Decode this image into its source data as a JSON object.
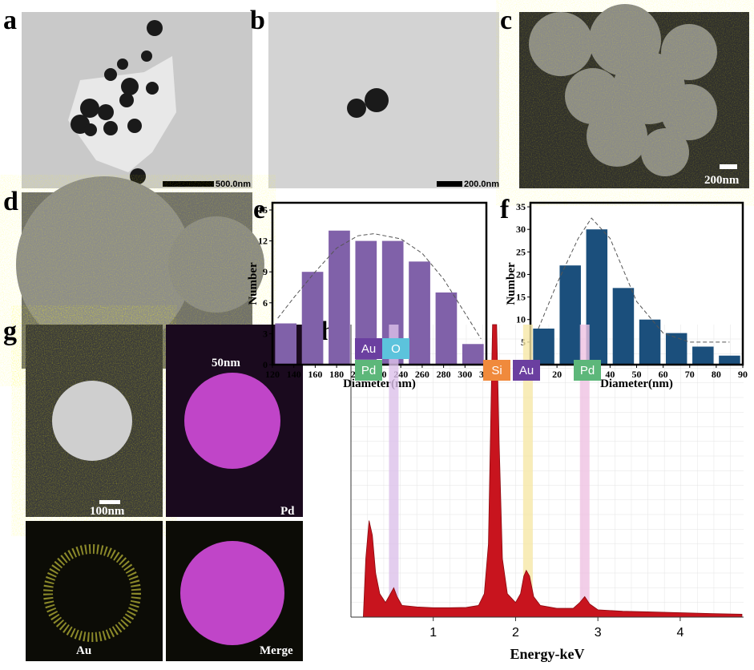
{
  "panel_labels": [
    "a",
    "b",
    "c",
    "d",
    "e",
    "f",
    "g",
    "h"
  ],
  "scale_bars": [
    "500.0nm",
    "200.0nm",
    "200nm",
    "50nm",
    "100nm"
  ],
  "map_labels": [
    "Pd",
    "Au",
    "Merge"
  ],
  "chart_data": [
    {
      "type": "histogram",
      "bins": [
        120,
        145,
        170,
        195,
        220,
        245,
        270,
        295,
        320
      ],
      "values": [
        4,
        9,
        13,
        12,
        12,
        10,
        7,
        2
      ],
      "color": "#8061a9",
      "xlim": [
        120,
        320
      ],
      "ylim": [
        0,
        15.7
      ],
      "xticks": [
        120,
        140,
        160,
        180,
        200,
        220,
        240,
        260,
        280,
        300,
        320
      ],
      "yticks": [
        0,
        3,
        6,
        9,
        12,
        15
      ],
      "xlabel": "Diameter(nm)",
      "ylabel": "Number",
      "curve": {
        "x": [
          125,
          140,
          160,
          180,
          200,
          215,
          240,
          260,
          280,
          300,
          315
        ],
        "values": [
          4.5,
          6.5,
          9,
          11.3,
          12.5,
          12.7,
          12.2,
          10.8,
          8.3,
          5,
          2.5
        ]
      }
    },
    {
      "type": "histogram",
      "bins": [
        10,
        20,
        30,
        40,
        50,
        60,
        70,
        80,
        90
      ],
      "values": [
        8,
        22,
        30,
        17,
        10,
        7,
        4,
        2
      ],
      "color": "#1b4f7c",
      "xlim": [
        10,
        90
      ],
      "ylim": [
        0,
        35.9
      ],
      "xticks": [
        10,
        20,
        30,
        40,
        50,
        60,
        70,
        80,
        90
      ],
      "yticks": [
        0,
        5,
        10,
        15,
        20,
        25,
        30,
        35
      ],
      "xlabel": "Diameter(nm)",
      "ylabel": "Number",
      "curve": {
        "x": [
          13,
          20,
          28,
          33,
          40,
          50,
          60,
          70,
          85
        ],
        "values": [
          8,
          18,
          28,
          32.5,
          28,
          14,
          7,
          5,
          5
        ]
      }
    },
    {
      "type": "area",
      "color": "#c8141e",
      "xlim": [
        0,
        4.77
      ],
      "ylim": [
        0,
        100
      ],
      "xticks": [
        1,
        2,
        3,
        4
      ],
      "xlabel": "Energy-keV",
      "x": [
        0.15,
        0.18,
        0.22,
        0.26,
        0.3,
        0.35,
        0.42,
        0.48,
        0.52,
        0.56,
        0.62,
        0.8,
        1.0,
        1.2,
        1.4,
        1.55,
        1.62,
        1.67,
        1.7,
        1.72,
        1.77,
        1.8,
        1.84,
        1.9,
        2.0,
        2.06,
        2.1,
        2.13,
        2.17,
        2.22,
        2.3,
        2.5,
        2.7,
        2.78,
        2.84,
        2.9,
        3.0,
        3.3,
        3.6,
        4.0,
        4.4,
        4.75
      ],
      "values": [
        0,
        20,
        33,
        28,
        15,
        8,
        5,
        8,
        10,
        7,
        4,
        3.5,
        3.2,
        3.2,
        3.3,
        4,
        8,
        25,
        70,
        100,
        100,
        60,
        20,
        8,
        5,
        8,
        14,
        16,
        14,
        7,
        4,
        3,
        3,
        5,
        7,
        4.5,
        2.5,
        2,
        1.8,
        1.5,
        1.2,
        1
      ],
      "bands": [
        {
          "x": 0.52,
          "color": "#dcc0ea"
        },
        {
          "x": 2.15,
          "color": "#f6e7a6"
        },
        {
          "x": 2.84,
          "color": "#efc2e2"
        }
      ],
      "element_labels": [
        {
          "text": "Au",
          "color": "#6b3fa0"
        },
        {
          "text": "O",
          "color": "#5cc3dc"
        },
        {
          "text": "Pd",
          "color": "#5db77a"
        },
        {
          "text": "Si",
          "color": "#f08a3c"
        },
        {
          "text": "Au",
          "color": "#6b3fa0"
        },
        {
          "text": "Pd",
          "color": "#5db77a"
        }
      ]
    }
  ]
}
